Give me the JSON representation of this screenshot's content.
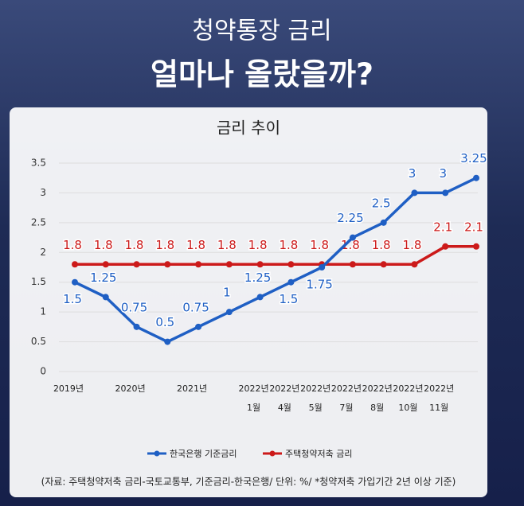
{
  "header": {
    "title": "청약통장 금리",
    "subtitle": "얼마나 올랐을까?"
  },
  "chart_data": {
    "type": "line",
    "title": "금리 추이",
    "categories": [
      [
        "2019년"
      ],
      null,
      [
        "2020년"
      ],
      null,
      [
        "2021년"
      ],
      null,
      [
        "2022년",
        "1월"
      ],
      [
        "2022년",
        "4월"
      ],
      [
        "2022년",
        "5월"
      ],
      [
        "2022년",
        "7월"
      ],
      [
        "2022년",
        "8월"
      ],
      [
        "2022년",
        "10월"
      ],
      [
        "2022년",
        "11월"
      ],
      null
    ],
    "series": [
      {
        "name": "한국은행 기준금리",
        "color": "#1f5fc4",
        "values": [
          1.5,
          1.25,
          0.75,
          0.5,
          0.75,
          1,
          1.25,
          1.5,
          1.75,
          2.25,
          2.5,
          3,
          3,
          3.25
        ]
      },
      {
        "name": "주택청약저축 금리",
        "color": "#cc1a1a",
        "values": [
          1.8,
          1.8,
          1.8,
          1.8,
          1.8,
          1.8,
          1.8,
          1.8,
          1.8,
          1.8,
          1.8,
          1.8,
          2.1,
          2.1
        ]
      }
    ],
    "ylim": [
      0,
      3.5
    ],
    "yticks": [
      0,
      0.5,
      1,
      1.5,
      2,
      2.5,
      3,
      3.5
    ],
    "grid": true,
    "source": "(자료: 주택청약저축 금리-국토교통부, 기준금리-한국은행/ 단위: %/ *청약저축 가입기간 2년 이상 기준)"
  }
}
